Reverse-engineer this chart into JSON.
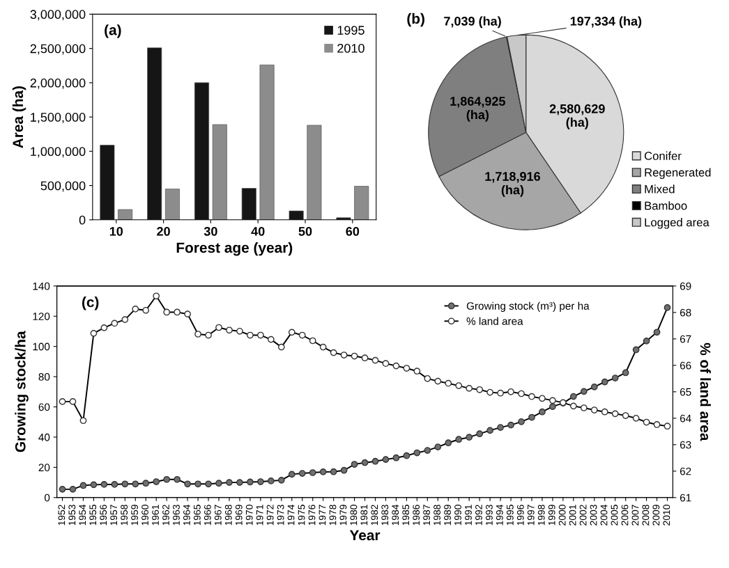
{
  "chart_data": [
    {
      "type": "bar",
      "annotations": [
        "(a)"
      ],
      "xlabel": "Forest age (year)",
      "ylabel": "Area (ha)",
      "categories": [
        "10",
        "20",
        "30",
        "40",
        "50",
        "60"
      ],
      "series": [
        {
          "name": "1995",
          "color": "#151515",
          "values": [
            1090000,
            2510000,
            2000000,
            460000,
            130000,
            30000
          ]
        },
        {
          "name": "2010",
          "color": "#8c8c8c",
          "values": [
            150000,
            450000,
            1390000,
            2260000,
            1380000,
            490000
          ]
        }
      ],
      "ylim": [
        0,
        3000000
      ],
      "yticks": [
        {
          "value": 0,
          "label": "0"
        },
        {
          "value": 500000,
          "label": "500,000"
        },
        {
          "value": 1000000,
          "label": "1,000,000"
        },
        {
          "value": 1500000,
          "label": "1,500,000"
        },
        {
          "value": 2000000,
          "label": "2,000,000"
        },
        {
          "value": 2500000,
          "label": "2,500,000"
        },
        {
          "value": 3000000,
          "label": "3,000,000"
        }
      ],
      "legend": "top right",
      "grid": false
    },
    {
      "type": "pie",
      "annotations": [
        "(b)"
      ],
      "categories": [
        "Conifer",
        "Regenerated",
        "Mixed",
        "Bamboo",
        "Logged area"
      ],
      "values": [
        2580629,
        1718916,
        1864925,
        7039,
        197334
      ],
      "colors": [
        "#d9d9d9",
        "#a6a6a6",
        "#7f7f7f",
        "#000000",
        "#c8c8c8"
      ],
      "value_labels": [
        "2,580,629\n(ha)",
        "1,718,916\n(ha)",
        "1,864,925\n(ha)",
        "7,039 (ha)",
        "197,334 (ha)"
      ],
      "legend": "right"
    },
    {
      "type": "line",
      "annotations": [
        "(c)"
      ],
      "xlabel": "Year",
      "ylabel": "Growing stock/ha",
      "y2label": "% of land area",
      "categories": [
        "1952",
        "1953",
        "1954",
        "1955",
        "1956",
        "1957",
        "1958",
        "1959",
        "1960",
        "1961",
        "1962",
        "1963",
        "1964",
        "1965",
        "1966",
        "1967",
        "1968",
        "1969",
        "1970",
        "1971",
        "1972",
        "1973",
        "1974",
        "1975",
        "1976",
        "1977",
        "1978",
        "1979",
        "1980",
        "1981",
        "1982",
        "1983",
        "1984",
        "1985",
        "1986",
        "1987",
        "1988",
        "1989",
        "1990",
        "1991",
        "1992",
        "1993",
        "1994",
        "1995",
        "1996",
        "1997",
        "1998",
        "1999",
        "2000",
        "2001",
        "2002",
        "2003",
        "2004",
        "2005",
        "2006",
        "2007",
        "2008",
        "2009",
        "2010"
      ],
      "series": [
        {
          "name": "Growing stock (m³) per ha",
          "color": "#707070",
          "values": [
            5.5,
            5.5,
            8,
            8.5,
            8.7,
            8.7,
            9,
            9,
            9.5,
            10.5,
            12,
            12,
            9,
            9,
            9,
            9.5,
            10,
            10,
            10.3,
            10.5,
            11,
            11.5,
            15.4,
            16,
            16.5,
            17,
            17.1,
            18,
            22,
            23.1,
            24,
            25.2,
            26.3,
            27.7,
            29.6,
            31.2,
            33.5,
            36.2,
            38.5,
            39.9,
            42.2,
            44.4,
            46.4,
            48,
            50.2,
            53.1,
            56.7,
            60.2,
            62.5,
            66.9,
            70.2,
            73.2,
            76.5,
            79.1,
            82.6,
            97.8,
            103.6,
            109.4,
            125.7
          ]
        },
        {
          "name": "% land area",
          "color": "#ffffff",
          "axis": "y2",
          "values": [
            64.63,
            64.63,
            63.91,
            67.21,
            67.42,
            67.59,
            67.73,
            68.13,
            68.08,
            68.62,
            68.01,
            68.01,
            67.94,
            67.18,
            67.14,
            67.43,
            67.33,
            67.29,
            67.14,
            67.14,
            66.98,
            66.69,
            67.25,
            67.14,
            66.93,
            66.69,
            66.48,
            66.39,
            66.35,
            66.28,
            66.19,
            66.07,
            65.98,
            65.89,
            65.78,
            65.5,
            65.4,
            65.32,
            65.23,
            65.13,
            65.08,
            64.98,
            64.95,
            65,
            64.93,
            64.82,
            64.75,
            64.67,
            64.59,
            64.46,
            64.39,
            64.31,
            64.24,
            64.17,
            64.1,
            64,
            63.85,
            63.76,
            63.7
          ]
        }
      ],
      "ylim": [
        0,
        140
      ],
      "yticks": [
        0,
        20,
        40,
        60,
        80,
        100,
        120,
        140
      ],
      "y2lim": [
        61,
        69
      ],
      "y2ticks": [
        61,
        62,
        63,
        64,
        65,
        66,
        67,
        68,
        69
      ],
      "marker": "circle",
      "line_style": "solid",
      "legend": "top right",
      "grid": false
    }
  ]
}
